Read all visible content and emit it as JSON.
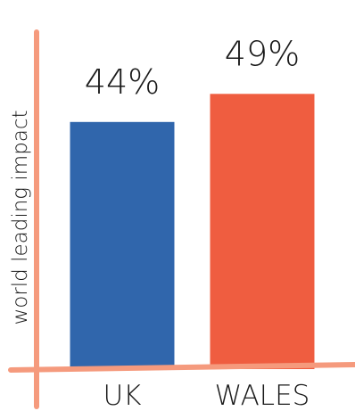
{
  "chart_data": {
    "type": "bar",
    "title": "",
    "xlabel": "",
    "ylabel": "world leading impact",
    "categories": [
      "UK",
      "WALES"
    ],
    "values": [
      44,
      49
    ],
    "value_labels": [
      "44%",
      "49%"
    ],
    "ylim": [
      0,
      60
    ],
    "grid": false,
    "legend": "none"
  },
  "colors": {
    "axis": "#f59a7d",
    "bars": [
      "#3066ac",
      "#ef5d40"
    ],
    "text": "#1a1a1a"
  }
}
